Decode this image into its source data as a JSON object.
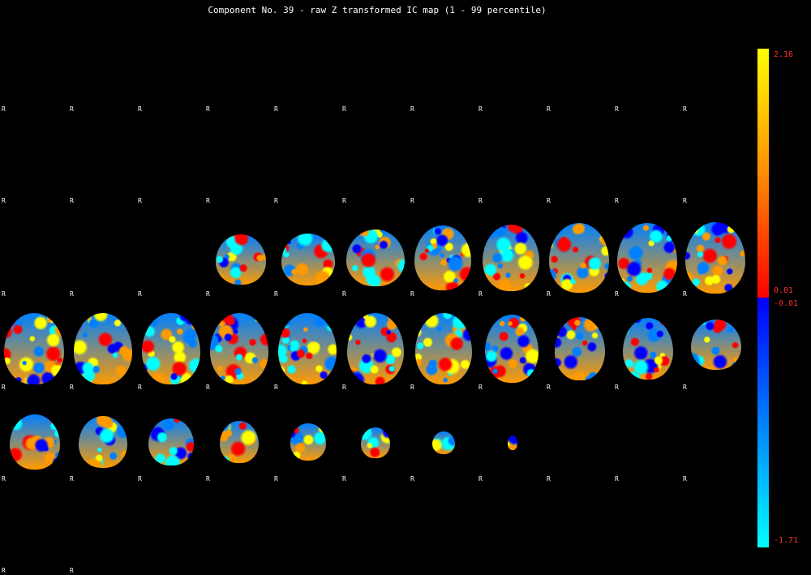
{
  "title": "Component No. 39 - raw Z transformed IC map (1 - 99 percentile)",
  "orientation_marker": "R",
  "colorbar": {
    "max_label": "2.16",
    "pos_min_label": "0.01",
    "neg_min_label": "-0.01",
    "min_label": "-1.71",
    "colors": {
      "pos_top": "#ffff00",
      "pos_mid": "#ff9a00",
      "pos_bottom": "#ff0000",
      "neg_top": "#0000ff",
      "neg_mid": "#0080ff",
      "neg_bottom": "#00ffff"
    }
  }
}
